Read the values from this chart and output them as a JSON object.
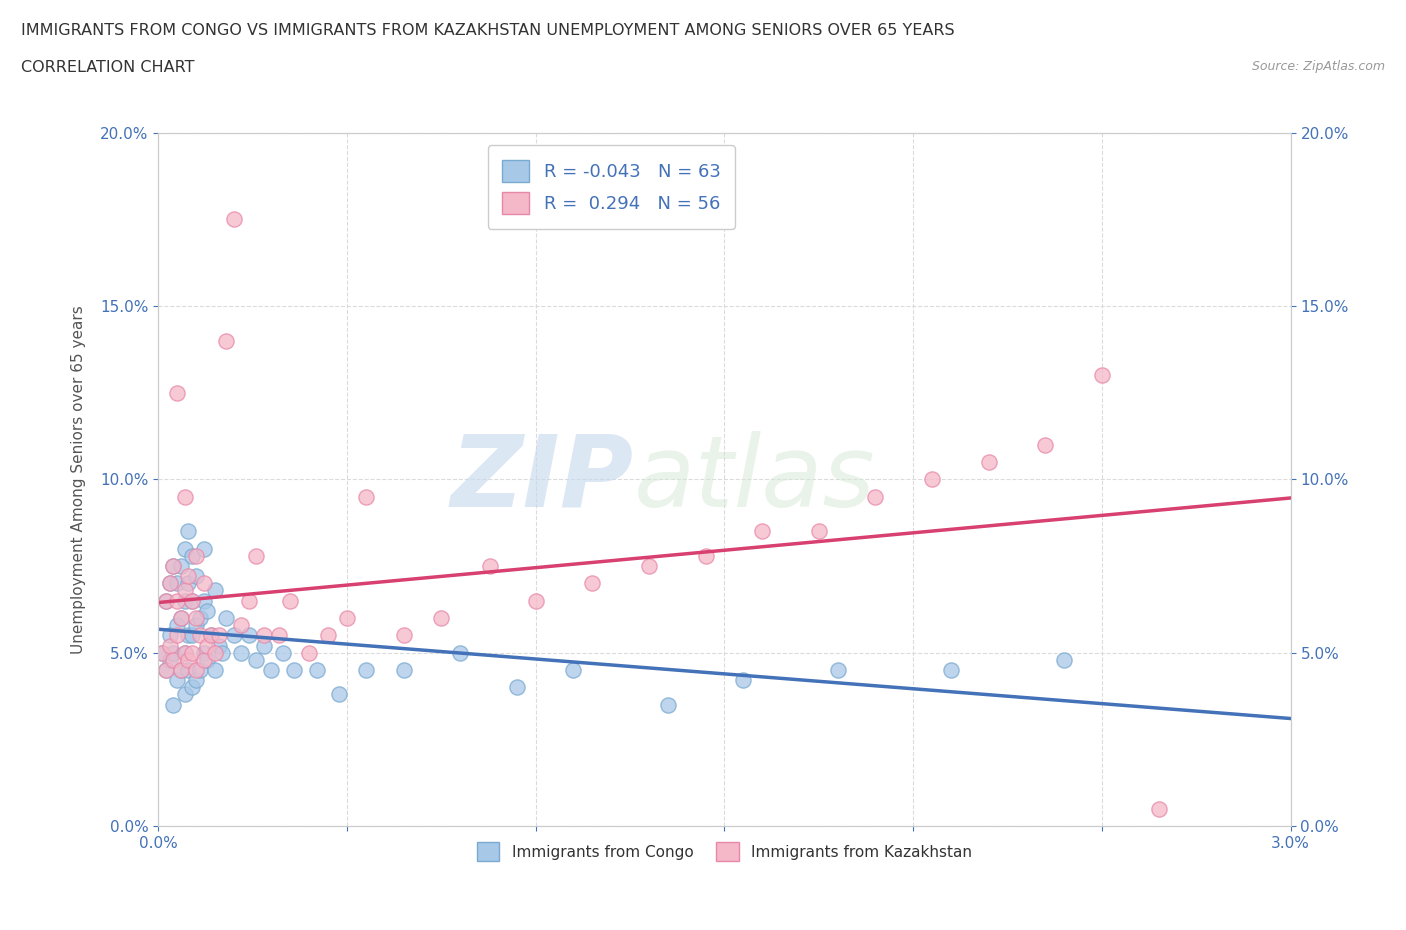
{
  "title_line1": "IMMIGRANTS FROM CONGO VS IMMIGRANTS FROM KAZAKHSTAN UNEMPLOYMENT AMONG SENIORS OVER 65 YEARS",
  "title_line2": "CORRELATION CHART",
  "source": "Source: ZipAtlas.com",
  "ylabel": "Unemployment Among Seniors over 65 years",
  "xlim": [
    0.0,
    3.0
  ],
  "ylim": [
    0.0,
    20.0
  ],
  "yticks": [
    0.0,
    5.0,
    10.0,
    15.0,
    20.0
  ],
  "xticks": [
    0.0,
    0.5,
    1.0,
    1.5,
    2.0,
    2.5,
    3.0
  ],
  "congo_color": "#a8c8e8",
  "congo_edge_color": "#7aaad0",
  "kazakhstan_color": "#f5b8c8",
  "kazakhstan_edge_color": "#e888a8",
  "congo_line_color": "#4472b8",
  "kazakhstan_line_color": "#d84070",
  "congo_R": -0.043,
  "congo_N": 63,
  "kazakhstan_R": 0.294,
  "kazakhstan_N": 56,
  "watermark_zip": "ZIP",
  "watermark_atlas": "atlas",
  "background_color": "#ffffff",
  "grid_color": "#d8d8d8",
  "congo_x": [
    0.01,
    0.02,
    0.02,
    0.03,
    0.03,
    0.03,
    0.04,
    0.04,
    0.04,
    0.05,
    0.05,
    0.05,
    0.06,
    0.06,
    0.06,
    0.07,
    0.07,
    0.07,
    0.07,
    0.08,
    0.08,
    0.08,
    0.08,
    0.09,
    0.09,
    0.09,
    0.09,
    0.1,
    0.1,
    0.1,
    0.11,
    0.11,
    0.12,
    0.12,
    0.12,
    0.13,
    0.13,
    0.14,
    0.15,
    0.15,
    0.16,
    0.17,
    0.18,
    0.2,
    0.22,
    0.24,
    0.26,
    0.28,
    0.3,
    0.33,
    0.36,
    0.42,
    0.48,
    0.55,
    0.65,
    0.8,
    0.95,
    1.1,
    1.35,
    1.55,
    1.8,
    2.1,
    2.4
  ],
  "congo_y": [
    5.0,
    4.5,
    6.5,
    4.8,
    5.5,
    7.0,
    3.5,
    5.0,
    7.5,
    4.2,
    5.8,
    7.0,
    4.5,
    6.0,
    7.5,
    3.8,
    5.0,
    6.5,
    8.0,
    4.5,
    5.5,
    7.0,
    8.5,
    4.0,
    5.5,
    6.5,
    7.8,
    4.2,
    5.8,
    7.2,
    4.5,
    6.0,
    5.0,
    6.5,
    8.0,
    4.8,
    6.2,
    5.5,
    4.5,
    6.8,
    5.2,
    5.0,
    6.0,
    5.5,
    5.0,
    5.5,
    4.8,
    5.2,
    4.5,
    5.0,
    4.5,
    4.5,
    3.8,
    4.5,
    4.5,
    5.0,
    4.0,
    4.5,
    3.5,
    4.2,
    4.5,
    4.5,
    4.8
  ],
  "kazakhstan_x": [
    0.01,
    0.02,
    0.02,
    0.03,
    0.03,
    0.04,
    0.04,
    0.05,
    0.05,
    0.05,
    0.06,
    0.06,
    0.07,
    0.07,
    0.07,
    0.08,
    0.08,
    0.09,
    0.09,
    0.1,
    0.1,
    0.1,
    0.11,
    0.12,
    0.12,
    0.13,
    0.14,
    0.15,
    0.16,
    0.18,
    0.2,
    0.22,
    0.24,
    0.26,
    0.28,
    0.32,
    0.35,
    0.4,
    0.45,
    0.5,
    0.55,
    0.65,
    0.75,
    0.88,
    1.0,
    1.15,
    1.3,
    1.45,
    1.6,
    1.75,
    1.9,
    2.05,
    2.2,
    2.35,
    2.5,
    2.65
  ],
  "kazakhstan_y": [
    5.0,
    4.5,
    6.5,
    5.2,
    7.0,
    4.8,
    7.5,
    5.5,
    6.5,
    12.5,
    4.5,
    6.0,
    5.0,
    6.8,
    9.5,
    4.8,
    7.2,
    5.0,
    6.5,
    4.5,
    6.0,
    7.8,
    5.5,
    4.8,
    7.0,
    5.2,
    5.5,
    5.0,
    5.5,
    14.0,
    17.5,
    5.8,
    6.5,
    7.8,
    5.5,
    5.5,
    6.5,
    5.0,
    5.5,
    6.0,
    9.5,
    5.5,
    6.0,
    7.5,
    6.5,
    7.0,
    7.5,
    7.8,
    8.5,
    8.5,
    9.5,
    10.0,
    10.5,
    11.0,
    13.0,
    0.5
  ]
}
